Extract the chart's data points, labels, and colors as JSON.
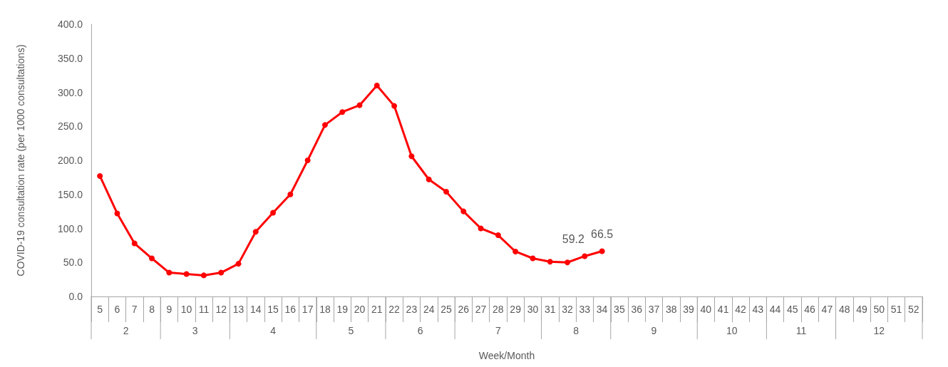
{
  "chart_data": {
    "type": "line",
    "xlabel": "Week/Month",
    "ylabel": "COVID-19 consultation rate (per 1000 consultations)",
    "categories": [
      "5",
      "6",
      "7",
      "8",
      "9",
      "10",
      "11",
      "12",
      "13",
      "14",
      "15",
      "16",
      "17",
      "18",
      "19",
      "20",
      "21",
      "22",
      "23",
      "24",
      "25",
      "26",
      "27",
      "28",
      "29",
      "30",
      "31",
      "32",
      "33",
      "34",
      "35",
      "36",
      "37",
      "38",
      "39",
      "40",
      "41",
      "42",
      "43",
      "44",
      "45",
      "46",
      "47",
      "48",
      "49",
      "50",
      "51",
      "52"
    ],
    "series": [
      {
        "color": "#ff0000",
        "values": [
          177,
          122,
          78,
          56,
          35,
          33,
          31,
          35,
          48,
          95,
          123,
          150,
          200,
          252,
          271,
          281,
          310,
          280,
          206,
          172,
          154,
          125,
          100,
          90,
          66,
          56,
          51,
          50,
          59.2,
          66.5,
          null,
          null,
          null,
          null,
          null,
          null,
          null,
          null,
          null,
          null,
          null,
          null,
          null,
          null,
          null,
          null,
          null,
          null
        ],
        "value_labels": [
          null,
          null,
          null,
          null,
          null,
          null,
          null,
          null,
          null,
          null,
          null,
          null,
          null,
          null,
          null,
          null,
          null,
          null,
          null,
          null,
          null,
          null,
          null,
          null,
          null,
          null,
          null,
          null,
          "59.2",
          "66.5",
          null,
          null,
          null,
          null,
          null,
          null,
          null,
          null,
          null,
          null,
          null,
          null,
          null,
          null,
          null,
          null,
          null,
          null
        ]
      }
    ],
    "annotations": [
      "2",
      "3",
      "4",
      "5",
      "6",
      "7",
      "8",
      "9",
      "10",
      "11",
      "12"
    ],
    "ylim": [
      0,
      400
    ],
    "yticks": [
      {
        "value": 0,
        "label": "0.0"
      },
      {
        "value": 50,
        "label": "50.0"
      },
      {
        "value": 100,
        "label": "100.0"
      },
      {
        "value": 150,
        "label": "150.0"
      },
      {
        "value": 200,
        "label": "200.0"
      },
      {
        "value": 250,
        "label": "250.0"
      },
      {
        "value": 300,
        "label": "300.0"
      },
      {
        "value": 350,
        "label": "350.0"
      },
      {
        "value": 400,
        "label": "400.0"
      }
    ],
    "marker": "circle",
    "line_style": "solid"
  }
}
